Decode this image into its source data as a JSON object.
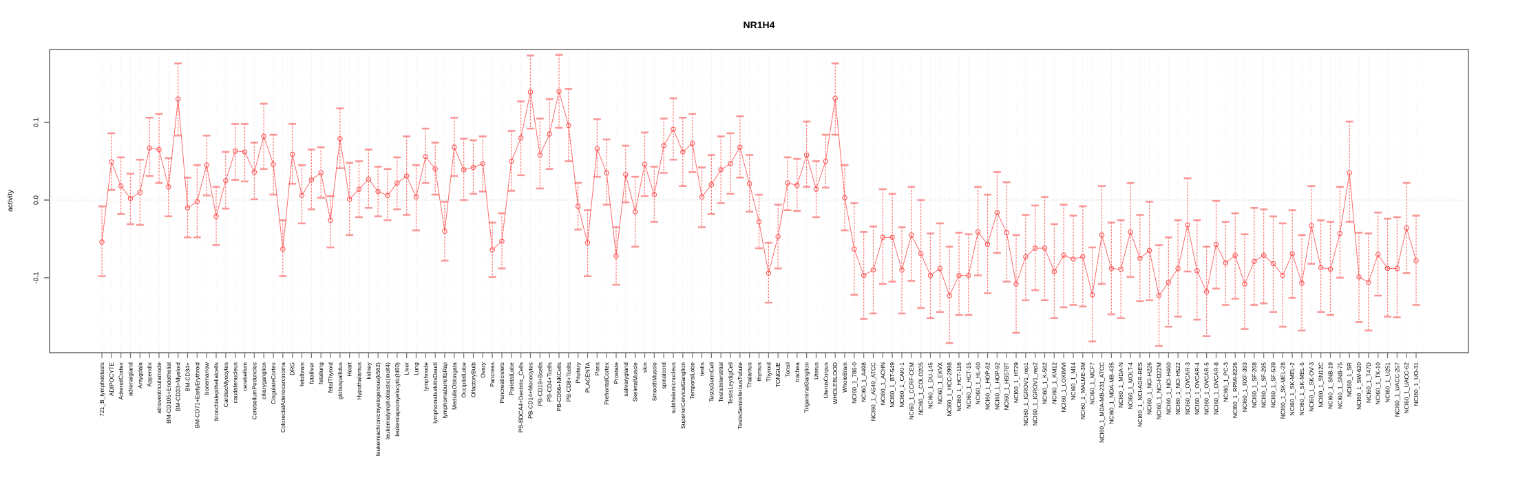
{
  "chart_data": {
    "type": "line",
    "title": "NR1H4",
    "ylabel": "activity",
    "xlabel": "",
    "ylim": [
      -0.19,
      0.195
    ],
    "yticks": [
      {
        "value": 0.1,
        "label": "0.1"
      },
      {
        "value": 0.0,
        "label": "0.0"
      },
      {
        "value": -0.1,
        "label": "-0.1"
      }
    ],
    "legend": "none",
    "grid": {
      "vertical_per_category": "dotted",
      "zero_line": "dotted"
    },
    "error_bars": true,
    "colors": {
      "series": "#ff5050",
      "cap": "#fa8c8c",
      "frame": "#8c8c8c",
      "tick": "#6e6e6e",
      "grid": "#dedede",
      "zero_line": "#cccccc",
      "text": "#000000"
    },
    "categories": [
      "721_B_lymphoblasts",
      "ADIPOCYTE",
      "AdrenalCortex",
      "adrenalgland",
      "Amygdala",
      "Appendix",
      "atrioventricularnode",
      "BM-CD105+Endothelial",
      "BM-CD33+Myeloid",
      "BM-CD34+",
      "BM-CD71+EarlyErythroid",
      "bonemarrow",
      "bronchialepithelialcells",
      "CardiacMyocytes",
      "caudatenucleus",
      "cerebellum",
      "CerebellumPeduncles",
      "ciliaryganglion",
      "CingulateCortex",
      "ColorectalAdenocarcinoma",
      "DRG",
      "fetalbrain",
      "fetalliver",
      "fetallung",
      "fetalThyroid",
      "globuspallidus",
      "Heart",
      "Hypothalamus",
      "kidney",
      "leukemiachronicmyelogenous(k562)",
      "leukemialymphoblastic(molt4)",
      "leukemiapromyelocytic(hl60)",
      "Liver",
      "Lung",
      "lymphnode",
      "lymphomaburkittsDaudi",
      "lymphomaburkittsRaji",
      "MedullaOblongata",
      "OccipitalLobe",
      "OlfactoryBulb",
      "Ovary",
      "Pancreas",
      "Pancreaticislets",
      "ParietalLobe",
      "PB-BDCA4+Dentritic_Cells",
      "PB-CD14+Monocytes",
      "PB-CD19+Bcells",
      "PB-CD4+Tcells",
      "PB-CD56+NKCells",
      "PB-CD8+Tcells",
      "Pituitary",
      "PLACENTA",
      "Pons",
      "PrefrontalCortex",
      "Prostate",
      "salivarygland",
      "SkeletalMuscle",
      "skin",
      "SmoothMuscle",
      "spinalcord",
      "subthalamicnucleus",
      "SuperiorCervicalGanglion",
      "TemporalLobe",
      "testis",
      "TestisGermCell",
      "TestisInterstitial",
      "TestisLeydigCell",
      "TestisSeminiferousTubule",
      "Thalamus",
      "thymus",
      "Thyroid",
      "TONGUE",
      "Tonsil",
      "trachea",
      "TrigeminalGanglion",
      "Uterus",
      "UterusCorpus",
      "WHOLEBLOOD",
      "WholeBrain",
      "NCI60_1_786-0",
      "NCI60_1_A498",
      "NCI60_1_A549_ATCC",
      "NCI60_1_ACHN",
      "NCI60_1_BT-549",
      "NCI60_1_CAKI-1",
      "NCI60_1_CCRF-CEM",
      "NCI60_1_COLO205",
      "NCI60_1_DU-145",
      "NCI60_1_EKVX",
      "NCI60_1_HCC-2998",
      "NCI60_1_HCT-116",
      "NCI60_1_HCT-15",
      "NCI60_1_HL-60",
      "NCI60_1_HOP-62",
      "NCI60_1_HOP-92",
      "NCI60_1_HS578T",
      "NCI60_1_HT29",
      "NCI60_1_IGROV1_rep1",
      "NCI60_1_IGROV1_rep2",
      "NCI60_1_K-562",
      "NCI60_1_KM12",
      "NCI60_1_LOXIMVI",
      "NCI60_1_M14",
      "NCI60_1_MALME-3M",
      "NCI60_1_MCF7",
      "NCI60_1_MDA-MB-231_ATCC",
      "NCI60_1_MDA-MB-435",
      "NCI60_1_MDA-N",
      "NCI60_1_MOLT-4",
      "NCI60_1_NCI-ADR-RES",
      "NCI60_1_NCI-H226",
      "NCI60_1_NCI-H322M",
      "NCI60_1_NCI-H460",
      "NCI60_1_NCI-H522",
      "NCI60_1_OVCAR-3",
      "NCI60_1_OVCAR-4",
      "NCI60_1_OVCAR-5",
      "NCI60_1_OVCAR-8",
      "NCI60_1_PC-3",
      "NCI60_1_RPMI-8226",
      "NCI60_1_RXF-393",
      "NCI60_1_SF-268",
      "NCI60_1_SF-295",
      "NCI60_1_SF-539",
      "NCI60_1_SK-MEL-28",
      "NCI60_1_SK-MEL-2",
      "NCI60_1_SK-MEL-5",
      "NCI60_1_SK-OV-3",
      "NCI60_1_SN12C",
      "NCI60_1_SNB-19",
      "NCI60_1_SNB-75",
      "NCI60_1_SR",
      "NCI60_1_SW-620",
      "NCI60_1_T47D",
      "NCI60_1_TK-10",
      "NCI60_1_U251",
      "NCI60_1_UACC-257",
      "NCI60_1_UACC-62",
      "NCI60_1_UO-31"
    ],
    "values": [
      -0.054,
      0.049,
      0.018,
      0.002,
      0.01,
      0.067,
      0.065,
      0.017,
      0.13,
      -0.01,
      -0.002,
      0.045,
      -0.021,
      0.025,
      0.063,
      0.062,
      0.036,
      0.082,
      0.046,
      -0.063,
      0.059,
      0.006,
      0.026,
      0.035,
      -0.026,
      0.079,
      0.001,
      0.014,
      0.027,
      0.011,
      0.006,
      0.022,
      0.031,
      0.004,
      0.056,
      0.04,
      -0.04,
      0.068,
      0.039,
      0.042,
      0.047,
      -0.064,
      -0.053,
      0.05,
      0.08,
      0.139,
      0.058,
      0.085,
      0.14,
      0.096,
      -0.008,
      -0.055,
      0.066,
      0.035,
      -0.072,
      0.033,
      -0.015,
      0.046,
      0.007,
      0.07,
      0.091,
      0.062,
      0.073,
      0.004,
      0.02,
      0.039,
      0.047,
      0.068,
      0.021,
      -0.028,
      -0.094,
      -0.047,
      0.022,
      0.019,
      0.058,
      0.014,
      0.05,
      0.131,
      0.003,
      -0.063,
      -0.097,
      -0.09,
      -0.048,
      -0.048,
      -0.09,
      -0.045,
      -0.069,
      -0.097,
      -0.088,
      -0.123,
      -0.097,
      -0.097,
      -0.041,
      -0.057,
      -0.016,
      -0.042,
      -0.108,
      -0.073,
      -0.062,
      -0.062,
      -0.092,
      -0.071,
      -0.076,
      -0.073,
      -0.122,
      -0.045,
      -0.088,
      -0.089,
      -0.041,
      -0.075,
      -0.065,
      -0.123,
      -0.106,
      -0.088,
      -0.032,
      -0.091,
      -0.118,
      -0.057,
      -0.081,
      -0.071,
      -0.108,
      -0.079,
      -0.071,
      -0.082,
      -0.097,
      -0.069,
      -0.107,
      -0.033,
      -0.087,
      -0.089,
      -0.043,
      0.035,
      -0.099,
      -0.106,
      -0.07,
      -0.088,
      -0.088,
      -0.036,
      -0.078
    ],
    "err_lo": [
      -0.098,
      0.013,
      -0.018,
      -0.031,
      -0.032,
      0.031,
      0.022,
      -0.021,
      0.083,
      -0.048,
      -0.048,
      0.006,
      -0.058,
      -0.011,
      0.026,
      0.024,
      0.001,
      0.04,
      0.007,
      -0.098,
      0.021,
      -0.03,
      -0.012,
      0.003,
      -0.061,
      0.041,
      -0.045,
      -0.022,
      -0.01,
      -0.021,
      -0.026,
      -0.012,
      -0.019,
      -0.039,
      0.022,
      0.007,
      -0.078,
      0.031,
      0.0,
      0.008,
      0.011,
      -0.099,
      -0.088,
      0.012,
      0.032,
      0.092,
      0.015,
      0.04,
      0.093,
      0.05,
      -0.038,
      -0.098,
      0.03,
      -0.006,
      -0.109,
      -0.003,
      -0.06,
      0.005,
      -0.028,
      0.035,
      0.052,
      0.018,
      0.036,
      -0.035,
      -0.018,
      -0.004,
      0.008,
      0.029,
      -0.015,
      -0.062,
      -0.132,
      -0.088,
      -0.013,
      -0.014,
      0.017,
      -0.022,
      0.016,
      0.084,
      -0.039,
      -0.122,
      -0.153,
      -0.146,
      -0.108,
      -0.105,
      -0.146,
      -0.104,
      -0.139,
      -0.152,
      -0.144,
      -0.184,
      -0.148,
      -0.148,
      -0.097,
      -0.12,
      -0.068,
      -0.105,
      -0.171,
      -0.129,
      -0.116,
      -0.129,
      -0.152,
      -0.138,
      -0.135,
      -0.137,
      -0.182,
      -0.108,
      -0.147,
      -0.152,
      -0.099,
      -0.13,
      -0.129,
      -0.188,
      -0.163,
      -0.15,
      -0.092,
      -0.154,
      -0.175,
      -0.114,
      -0.135,
      -0.127,
      -0.166,
      -0.135,
      -0.133,
      -0.144,
      -0.163,
      -0.126,
      -0.168,
      -0.082,
      -0.144,
      -0.148,
      -0.1,
      -0.028,
      -0.157,
      -0.168,
      -0.123,
      -0.15,
      -0.151,
      -0.094,
      -0.135
    ],
    "err_hi": [
      -0.008,
      0.086,
      0.055,
      0.034,
      0.052,
      0.106,
      0.111,
      0.054,
      0.176,
      0.029,
      0.045,
      0.083,
      0.017,
      0.062,
      0.098,
      0.098,
      0.074,
      0.124,
      0.084,
      -0.026,
      0.098,
      0.045,
      0.065,
      0.068,
      0.005,
      0.118,
      0.048,
      0.05,
      0.065,
      0.043,
      0.04,
      0.055,
      0.082,
      0.045,
      0.092,
      0.074,
      -0.002,
      0.106,
      0.079,
      0.077,
      0.082,
      -0.029,
      -0.017,
      0.089,
      0.127,
      0.186,
      0.105,
      0.13,
      0.187,
      0.143,
      0.022,
      -0.013,
      0.104,
      0.078,
      -0.035,
      0.07,
      0.03,
      0.087,
      0.043,
      0.105,
      0.131,
      0.106,
      0.111,
      0.042,
      0.058,
      0.082,
      0.086,
      0.108,
      0.058,
      0.007,
      -0.055,
      -0.006,
      0.055,
      0.053,
      0.101,
      0.05,
      0.084,
      0.176,
      0.045,
      -0.004,
      -0.041,
      -0.034,
      0.014,
      0.008,
      -0.035,
      0.017,
      0.0,
      -0.043,
      -0.03,
      -0.06,
      -0.042,
      -0.044,
      0.017,
      0.007,
      0.036,
      0.023,
      -0.045,
      -0.019,
      -0.007,
      0.004,
      -0.031,
      -0.006,
      -0.02,
      -0.008,
      -0.061,
      0.018,
      -0.029,
      -0.026,
      0.022,
      -0.019,
      -0.002,
      -0.058,
      -0.048,
      -0.026,
      0.028,
      -0.026,
      -0.06,
      -0.001,
      -0.028,
      -0.017,
      -0.044,
      -0.01,
      -0.012,
      -0.021,
      -0.03,
      -0.013,
      -0.045,
      0.018,
      -0.026,
      -0.028,
      0.017,
      0.101,
      -0.042,
      -0.043,
      -0.016,
      -0.024,
      -0.022,
      0.022,
      -0.02
    ]
  }
}
